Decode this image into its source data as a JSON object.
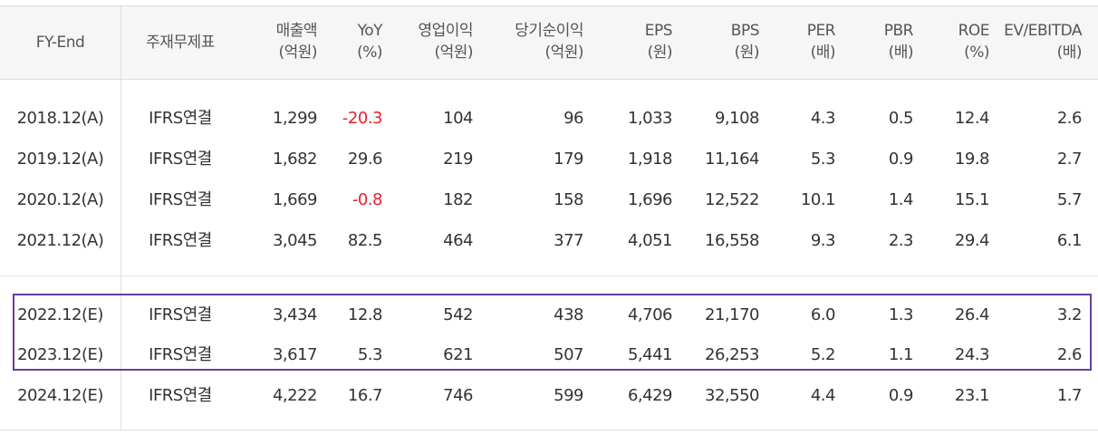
{
  "headers": [
    {
      "l1": "FY-End",
      "l2": ""
    },
    {
      "l1": "주재무제표",
      "l2": ""
    },
    {
      "l1": "매출액",
      "l2": "(억원)"
    },
    {
      "l1": "YoY",
      "l2": "(%)"
    },
    {
      "l1": "영업이익",
      "l2": "(억원)"
    },
    {
      "l1": "당기순이익",
      "l2": "(억원)"
    },
    {
      "l1": "EPS",
      "l2": "(원)"
    },
    {
      "l1": "BPS",
      "l2": "(원)"
    },
    {
      "l1": "PER",
      "l2": "(배)"
    },
    {
      "l1": "PBR",
      "l2": "(배)"
    },
    {
      "l1": "ROE",
      "l2": "(%)"
    },
    {
      "l1": "EV/EBITDA",
      "l2": "(배)"
    }
  ],
  "rows": [
    [
      "2018.12(A)",
      "IFRS연결",
      "1,299",
      "-20.3",
      "104",
      "96",
      "1,033",
      "9,108",
      "4.3",
      "0.5",
      "12.4",
      "2.6"
    ],
    [
      "2019.12(A)",
      "IFRS연결",
      "1,682",
      "29.6",
      "219",
      "179",
      "1,918",
      "11,164",
      "5.3",
      "0.9",
      "19.8",
      "2.7"
    ],
    [
      "2020.12(A)",
      "IFRS연결",
      "1,669",
      "-0.8",
      "182",
      "158",
      "1,696",
      "12,522",
      "10.1",
      "1.4",
      "15.1",
      "5.7"
    ],
    [
      "2021.12(A)",
      "IFRS연결",
      "3,045",
      "82.5",
      "464",
      "377",
      "4,051",
      "16,558",
      "9.3",
      "2.3",
      "29.4",
      "6.1"
    ],
    [
      "2022.12(E)",
      "IFRS연결",
      "3,434",
      "12.8",
      "542",
      "438",
      "4,706",
      "21,170",
      "6.0",
      "1.3",
      "26.4",
      "3.2"
    ],
    [
      "2023.12(E)",
      "IFRS연결",
      "3,617",
      "5.3",
      "621",
      "507",
      "5,441",
      "26,253",
      "5.2",
      "1.1",
      "24.3",
      "2.6"
    ],
    [
      "2024.12(E)",
      "IFRS연결",
      "4,222",
      "16.7",
      "746",
      "599",
      "6,429",
      "32,550",
      "4.4",
      "0.9",
      "23.1",
      "1.7"
    ]
  ],
  "colors": {
    "negative": "#e5202e",
    "highlight_border": "#6a3d9a"
  }
}
